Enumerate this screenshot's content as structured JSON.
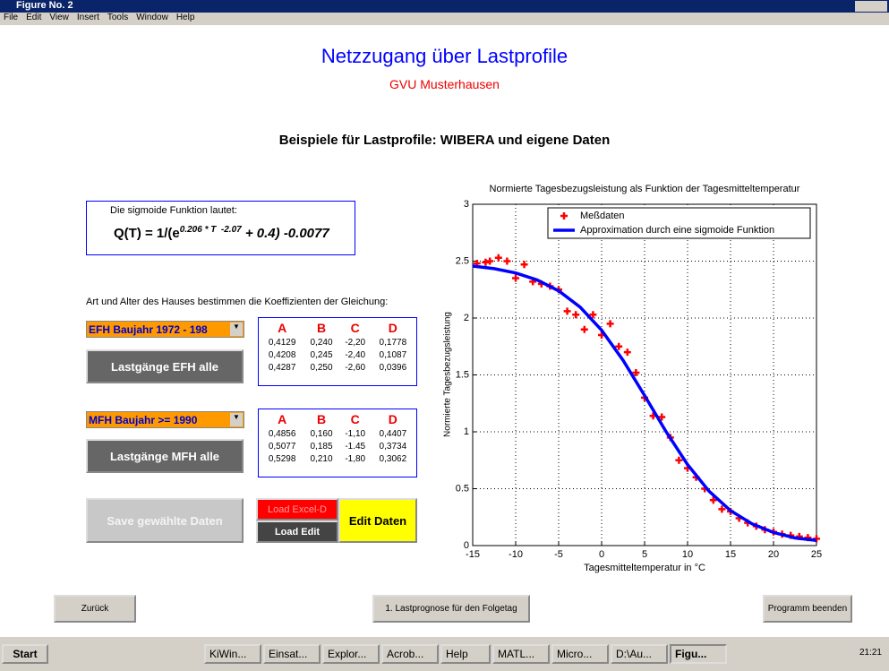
{
  "window": {
    "title": "Figure No. 2",
    "menu": [
      "File",
      "Edit",
      "View",
      "Insert",
      "Tools",
      "Window",
      "Help"
    ]
  },
  "header": {
    "title": "Netzzugang über Lastprofile",
    "subtitle": "GVU Musterhausen",
    "heading": "Beispiele für Lastprofile: WIBERA und eigene Daten"
  },
  "formula": {
    "caption": "Die sigmoide Funktion lautet:",
    "base": "Q(T) = 1/(e",
    "exponent": "0.206 * T  -2.07",
    "rest": " + 0.4) -0.0077"
  },
  "instruction": "Art und Alter des Hauses bestimmen die Koeffizienten der Gleichung:",
  "efh": {
    "popup": "EFH Baujahr 1972 - 198",
    "button": "Lastgänge EFH alle",
    "table": {
      "header": [
        "A",
        "B",
        "C",
        "D"
      ],
      "rows": [
        [
          "0,4129",
          "0,240",
          "-2,20",
          "0,1778"
        ],
        [
          "0,4208",
          "0,245",
          "-2,40",
          "0,1087"
        ],
        [
          "0,4287",
          "0,250",
          "-2,60",
          "0,0396"
        ]
      ]
    }
  },
  "mfh": {
    "popup": "MFH Baujahr >= 1990",
    "button": "Lastgänge MFH alle",
    "table": {
      "header": [
        "A",
        "B",
        "C",
        "D"
      ],
      "rows": [
        [
          "0,4856",
          "0,160",
          "-1,10",
          "0,4407"
        ],
        [
          "0,5077",
          "0,185",
          "-1.45",
          "0,3734"
        ],
        [
          "0,5298",
          "0,210",
          "-1,80",
          "0,3062"
        ]
      ]
    }
  },
  "buttons": {
    "save": "Save gewählte Daten",
    "load_excel": "Load Excel-D",
    "load_edit": "Load Edit",
    "edit": "Edit Daten",
    "back": "Zurück",
    "forecast": "1. Lastprognose für den Folgetag",
    "quit": "Programm beenden"
  },
  "taskbar": {
    "start": "Start",
    "items": [
      "KiWin...",
      "Einsat...",
      "Explor...",
      "Acrob...",
      "Help",
      "MATL...",
      "Micro...",
      "D:\\Au...",
      "Figu..."
    ],
    "clock": "21:21"
  },
  "chart_data": {
    "type": "line",
    "title": "Normierte Tagesbezugsleistung als Funktion der Tagesmitteltemperatur",
    "x_label": "Tagesmitteltemperatur in °C",
    "y_label": "Normierte Tagesbezugsleistung",
    "xlim": [
      -15,
      25
    ],
    "ylim": [
      0,
      3
    ],
    "xticks": [
      -15,
      -10,
      -5,
      0,
      5,
      10,
      15,
      20,
      25
    ],
    "yticks": [
      0,
      0.5,
      1,
      1.5,
      2,
      2.5,
      3
    ],
    "grid": true,
    "legend": "top-right",
    "series": [
      {
        "name": "Meßdaten",
        "color": "#ff0000",
        "marker": "+",
        "x": [
          -14.5,
          -13.5,
          -13,
          -12,
          -11,
          -10,
          -9,
          -8,
          -7,
          -6,
          -5,
          -4,
          -3,
          -2,
          -1,
          0,
          1,
          2,
          3,
          4,
          5,
          6,
          7,
          8,
          9,
          10,
          11,
          12,
          13,
          14,
          15,
          16,
          17,
          18,
          19,
          20,
          21,
          22,
          23,
          24,
          25
        ],
        "values": [
          2.48,
          2.49,
          2.5,
          2.53,
          2.5,
          2.35,
          2.47,
          2.32,
          2.3,
          2.28,
          2.25,
          2.06,
          2.03,
          1.9,
          2.03,
          1.85,
          1.95,
          1.75,
          1.7,
          1.52,
          1.3,
          1.14,
          1.13,
          0.95,
          0.75,
          0.68,
          0.6,
          0.5,
          0.4,
          0.32,
          0.3,
          0.24,
          0.2,
          0.17,
          0.14,
          0.12,
          0.1,
          0.09,
          0.08,
          0.07,
          0.06
        ]
      },
      {
        "name": "Approximation durch eine sigmoide Funktion",
        "color": "#0000ff",
        "x": [
          -15,
          -12.5,
          -10,
          -7.5,
          -5,
          -2.5,
          0,
          2.5,
          5,
          7.5,
          10,
          12.5,
          15,
          17.5,
          20,
          22.5,
          25
        ],
        "values": [
          2.457,
          2.434,
          2.396,
          2.335,
          2.239,
          2.096,
          1.893,
          1.628,
          1.319,
          1.001,
          0.712,
          0.478,
          0.307,
          0.191,
          0.115,
          0.067,
          0.045
        ]
      }
    ]
  }
}
